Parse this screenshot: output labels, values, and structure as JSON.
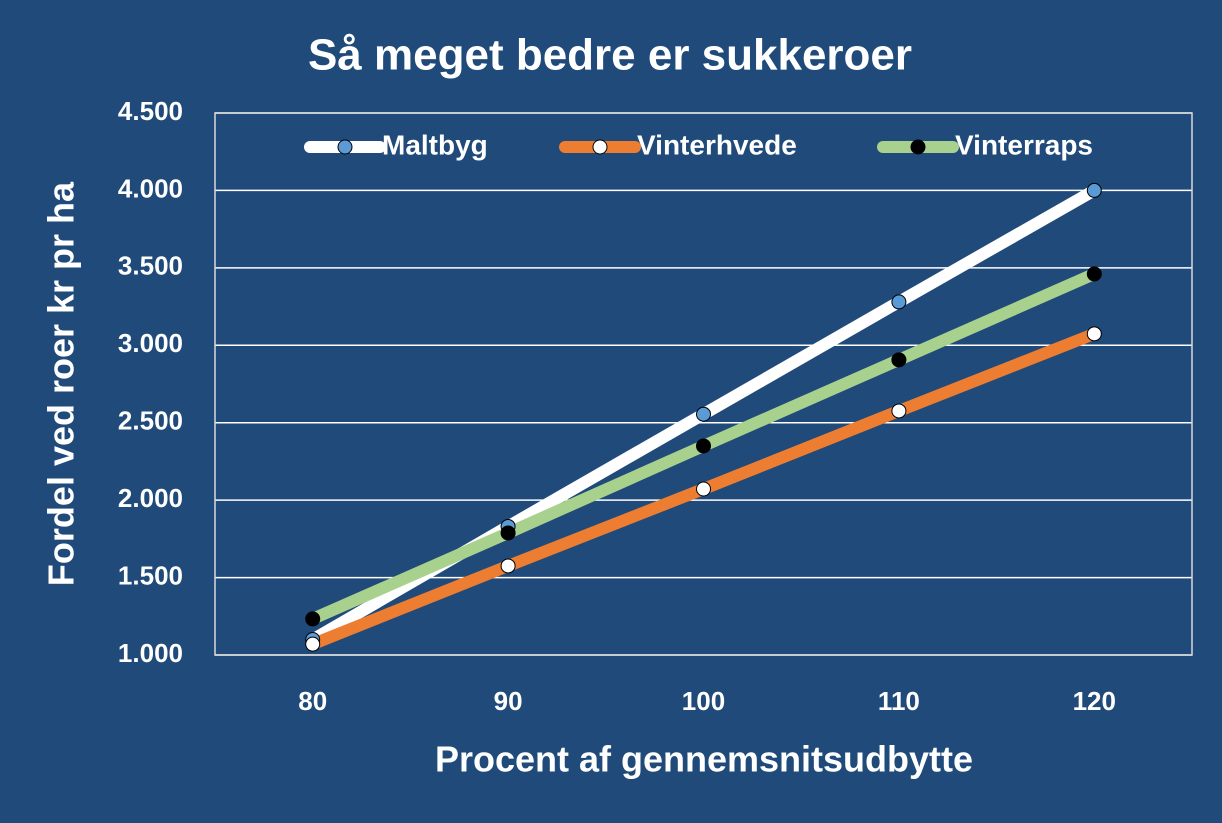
{
  "chart_data": {
    "type": "line",
    "title": "Så meget bedre er sukkeroer",
    "x_label": "Procent af gennemsnitsudbytte",
    "y_label": "Fordel ved roer kr pr ha",
    "x": [
      80,
      90,
      100,
      110,
      120
    ],
    "series": [
      {
        "name": "Maltbyg",
        "color": "#ffffff",
        "marker_color": "#5b9bd5",
        "values": [
          1100,
          1830,
          2555,
          3280,
          4000
        ]
      },
      {
        "name": "Vinterhvede",
        "color": "#ed7d31",
        "marker_color": "#ffffff",
        "values": [
          1070,
          1575,
          2072,
          2576,
          3074
        ]
      },
      {
        "name": "Vinterraps",
        "color": "#a9d18e",
        "marker_color": "#000000",
        "values": [
          1233,
          1788,
          2350,
          2906,
          3461
        ]
      }
    ],
    "xlim": [
      75,
      125
    ],
    "xticks": [
      80,
      90,
      100,
      110,
      120
    ],
    "ylim": [
      1000,
      4500
    ],
    "yticks": [
      {
        "value": 1000,
        "label": "1.000"
      },
      {
        "value": 1500,
        "label": "1.500"
      },
      {
        "value": 2000,
        "label": "2.000"
      },
      {
        "value": 2500,
        "label": "2.500"
      },
      {
        "value": 3000,
        "label": "3.000"
      },
      {
        "value": 3500,
        "label": "3.500"
      },
      {
        "value": 4000,
        "label": "4.000"
      },
      {
        "value": 4500,
        "label": "4.500"
      }
    ],
    "grid": true,
    "legend": "top"
  }
}
